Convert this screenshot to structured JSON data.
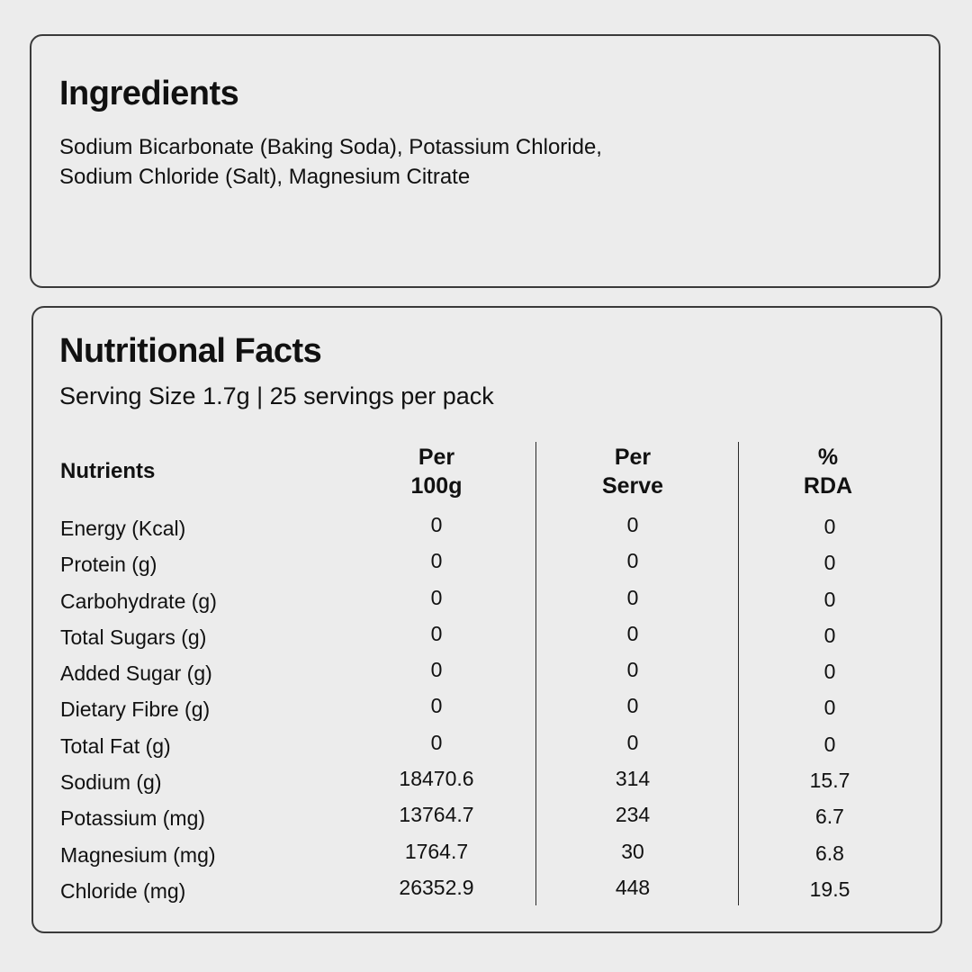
{
  "ingredients": {
    "title": "Ingredients",
    "lines": [
      "Sodium Bicarbonate (Baking Soda), Potassium Chloride,",
      "Sodium Chloride (Salt), Magnesium Citrate"
    ]
  },
  "nutrition": {
    "title": "Nutritional Facts",
    "serving_size": "Serving Size 1.7g | 25 servings per pack",
    "headers": {
      "nutrients": "Nutrients",
      "per_100g": [
        "Per",
        "100g"
      ],
      "per_serve": [
        "Per",
        "Serve"
      ],
      "rda": [
        "%",
        "RDA"
      ]
    },
    "rows": [
      {
        "name": "Energy (Kcal)",
        "per_100g": "0",
        "per_serve": "0",
        "rda": "0"
      },
      {
        "name": "Protein (g)",
        "per_100g": "0",
        "per_serve": "0",
        "rda": "0"
      },
      {
        "name": "Carbohydrate (g)",
        "per_100g": "0",
        "per_serve": "0",
        "rda": "0"
      },
      {
        "name": "Total Sugars (g)",
        "per_100g": "0",
        "per_serve": "0",
        "rda": "0"
      },
      {
        "name": "Added Sugar (g)",
        "per_100g": "0",
        "per_serve": "0",
        "rda": "0"
      },
      {
        "name": "Dietary Fibre (g)",
        "per_100g": "0",
        "per_serve": "0",
        "rda": "0"
      },
      {
        "name": "Total Fat (g)",
        "per_100g": "0",
        "per_serve": "0",
        "rda": "0"
      },
      {
        "name": "Sodium (g)",
        "per_100g": "18470.6",
        "per_serve": "314",
        "rda": "15.7"
      },
      {
        "name": "Potassium (mg)",
        "per_100g": "13764.7",
        "per_serve": "234",
        "rda": "6.7"
      },
      {
        "name": "Magnesium (mg)",
        "per_100g": "1764.7",
        "per_serve": "30",
        "rda": "6.8"
      },
      {
        "name": "Chloride (mg)",
        "per_100g": "26352.9",
        "per_serve": "448",
        "rda": "19.5"
      }
    ]
  }
}
